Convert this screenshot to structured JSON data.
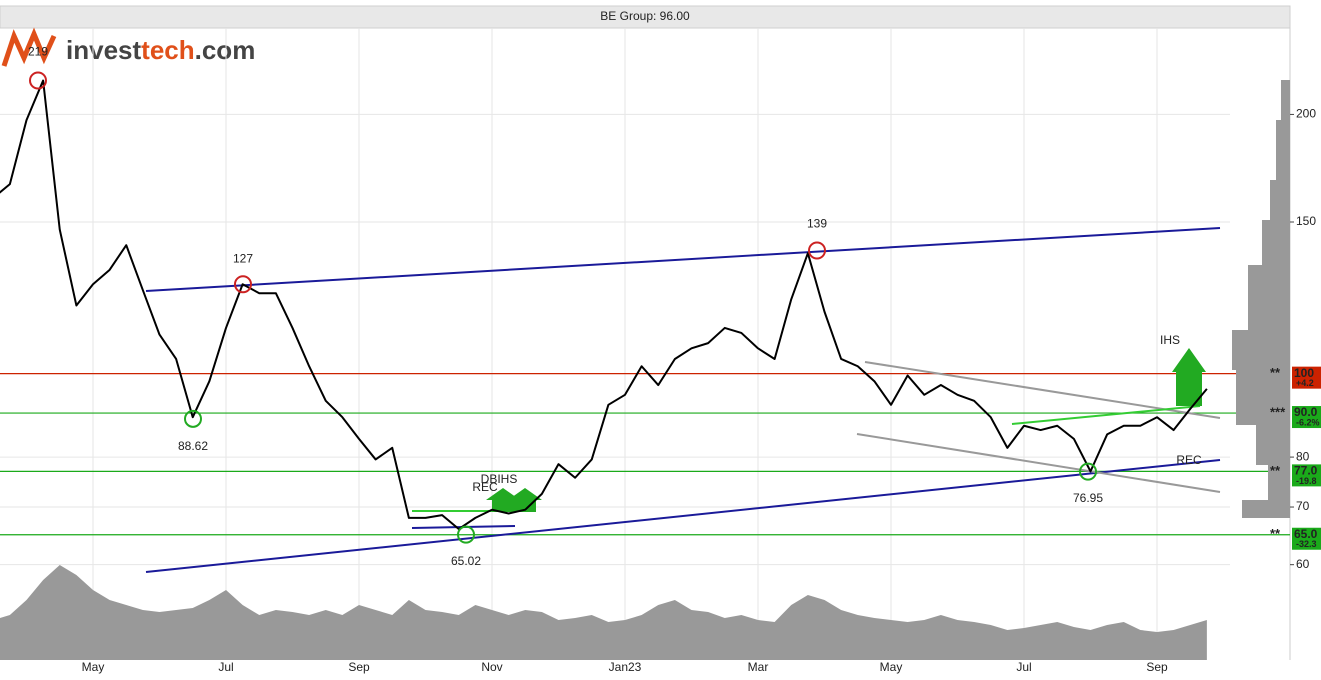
{
  "chart_data": {
    "type": "line",
    "title": "BE Group: 96.00",
    "logo": [
      "invest",
      "tech",
      ".com"
    ],
    "categories": [
      null,
      null,
      null,
      null,
      null,
      null,
      "May",
      null,
      null,
      null,
      null,
      null,
      null,
      null,
      "Jul",
      null,
      null,
      null,
      null,
      null,
      null,
      null,
      "Sep",
      null,
      null,
      null,
      null,
      null,
      null,
      null,
      "Nov",
      null,
      null,
      null,
      null,
      null,
      null,
      null,
      "Jan23",
      null,
      null,
      null,
      null,
      null,
      null,
      null,
      "Mar",
      null,
      null,
      null,
      null,
      null,
      null,
      null,
      "May",
      null,
      null,
      null,
      null,
      null,
      null,
      null,
      "Jul",
      null,
      null,
      null,
      null,
      null,
      null,
      null,
      "Sep",
      null,
      null,
      null
    ],
    "values": [
      160,
      166,
      197,
      219,
      147,
      120,
      127,
      132,
      141,
      125,
      111,
      104,
      89,
      98,
      113,
      127,
      124,
      124,
      113,
      102,
      93,
      89,
      84,
      79.5,
      82,
      68,
      68,
      68.5,
      66,
      68,
      69.5,
      68.8,
      69.5,
      72.5,
      78.5,
      75.7,
      79.5,
      92,
      94.5,
      102,
      97,
      104,
      107,
      108.5,
      113,
      111.5,
      107,
      104,
      122,
      138,
      118,
      104,
      102,
      98,
      92,
      99.5,
      94.5,
      97,
      94.5,
      93,
      89,
      82,
      87,
      86,
      87,
      84,
      77,
      85,
      87,
      87,
      89,
      86,
      91,
      96
    ],
    "color": "#000000",
    "volume": [
      40,
      45,
      60,
      80,
      95,
      85,
      70,
      60,
      55,
      50,
      48,
      50,
      52,
      60,
      70,
      55,
      45,
      50,
      48,
      45,
      50,
      45,
      55,
      50,
      45,
      60,
      50,
      48,
      45,
      55,
      50,
      45,
      50,
      48,
      40,
      42,
      45,
      38,
      40,
      45,
      55,
      60,
      50,
      48,
      42,
      45,
      40,
      38,
      55,
      65,
      60,
      50,
      45,
      42,
      40,
      38,
      40,
      45,
      40,
      38,
      35,
      30,
      32,
      35,
      38,
      33,
      30,
      35,
      38,
      30,
      28,
      30,
      35,
      40
    ],
    "volume_color": "#999999",
    "y2lim": [
      0,
      100
    ],
    "ylim": [
      46.5,
      252
    ],
    "yticks": [
      60,
      70,
      80,
      150,
      200
    ],
    "log_y": true,
    "grid": true,
    "pivots": [
      {
        "value": 219,
        "color": "#cc2222"
      },
      {
        "value": 127,
        "color": "#cc2222"
      },
      {
        "value": 88.62,
        "color": "#22aa22"
      },
      {
        "value": 65.02,
        "color": "#22aa22"
      },
      {
        "value": 139,
        "color": "#cc2222"
      },
      {
        "value": 76.95,
        "color": "#22aa22"
      }
    ],
    "patterns": [
      "REC",
      "DBIHS",
      "IHS",
      "REC"
    ],
    "levels": [
      {
        "value": 100,
        "change": "+4.2",
        "stars": "**",
        "color": "#cc2200"
      },
      {
        "value": 90,
        "label": "90.0",
        "change": "-6.2%",
        "stars": "***",
        "color": "#1aaa1a"
      },
      {
        "value": 77,
        "label": "77.0",
        "change": "-19.8",
        "stars": "**",
        "color": "#1aaa1a"
      },
      {
        "value": 65,
        "label": "65.0",
        "change": "-32.3",
        "stars": "**",
        "color": "#1aaa1a"
      }
    ]
  }
}
